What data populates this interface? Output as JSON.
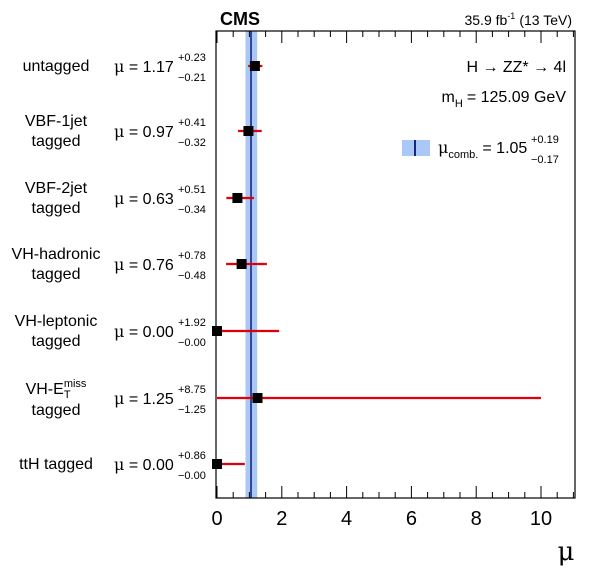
{
  "header": {
    "experiment": "CMS",
    "lumi_prefix": "35.9 fb",
    "lumi_exp": "-1",
    "energy": "(13 TeV)"
  },
  "annotations": {
    "process": "H → ZZ* → 4l",
    "mass_symbol": "m",
    "mass_sub": "H",
    "mass_value": "= 125.09 GeV"
  },
  "legend": {
    "symbol": "μ",
    "sub": "comb.",
    "eq": "= 1.05",
    "up": "+0.19",
    "down": "−0.17"
  },
  "colors": {
    "band": "#aac8f5",
    "center_line": "#1a237e",
    "error_bar": "#e0000a",
    "marker": "#000000"
  },
  "chart_data": {
    "type": "scatter",
    "xlabel": "μ",
    "xlim": [
      0,
      11
    ],
    "xticks": [
      0,
      2,
      4,
      6,
      8,
      10
    ],
    "combined": {
      "value": 1.05,
      "up": 0.19,
      "down": 0.17
    },
    "categories": [
      {
        "label_lines": [
          "untagged"
        ],
        "mu_text": "1.17",
        "up_text": "+0.23",
        "down_text": "−0.21",
        "value": 1.17,
        "up": 0.23,
        "down": 0.21
      },
      {
        "label_lines": [
          "VBF-1jet",
          "tagged"
        ],
        "mu_text": "0.97",
        "up_text": "+0.41",
        "down_text": "−0.32",
        "value": 0.97,
        "up": 0.41,
        "down": 0.32
      },
      {
        "label_lines": [
          "VBF-2jet",
          "tagged"
        ],
        "mu_text": "0.63",
        "up_text": "+0.51",
        "down_text": "−0.34",
        "value": 0.63,
        "up": 0.51,
        "down": 0.34
      },
      {
        "label_lines": [
          "VH-hadronic",
          "tagged"
        ],
        "mu_text": "0.76",
        "up_text": "+0.78",
        "down_text": "−0.48",
        "value": 0.76,
        "up": 0.78,
        "down": 0.48
      },
      {
        "label_lines": [
          "VH-leptonic",
          "tagged"
        ],
        "mu_text": "0.00",
        "up_text": "+1.92",
        "down_text": "−0.00",
        "value": 0.0,
        "up": 1.92,
        "down": 0.0
      },
      {
        "label_lines": [
          "VH-E",
          "tagged"
        ],
        "label_sup": "miss",
        "label_sub": "T",
        "mu_text": "1.25",
        "up_text": "+8.75",
        "down_text": "−1.25",
        "value": 1.25,
        "up": 8.75,
        "down": 1.25
      },
      {
        "label_lines": [
          "ttH tagged"
        ],
        "mu_text": "0.00",
        "up_text": "+0.86",
        "down_text": "−0.00",
        "value": 0.0,
        "up": 0.86,
        "down": 0.0
      }
    ]
  }
}
